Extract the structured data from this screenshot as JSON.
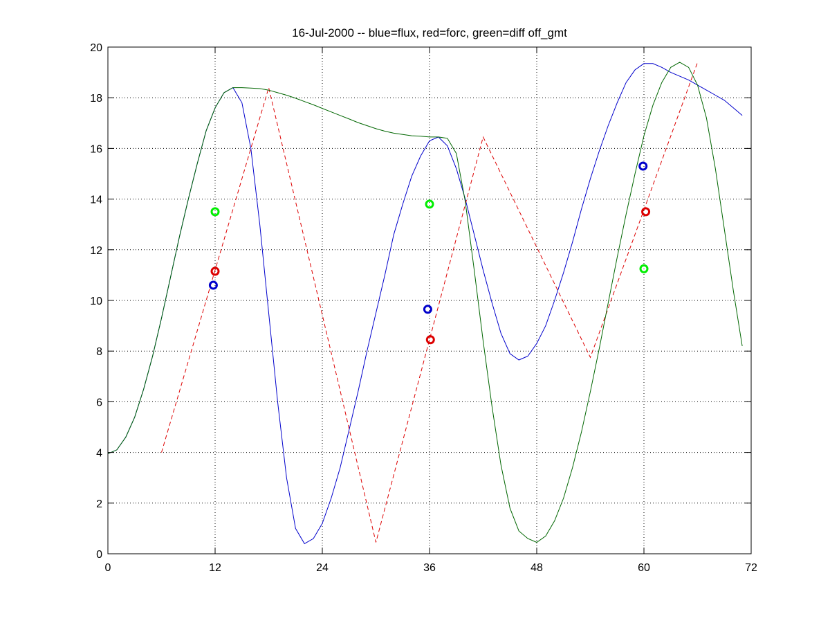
{
  "chart_data": {
    "type": "line",
    "title": "16-Jul-2000 -- blue=flux, red=forc, green=diff off_gmt",
    "xlabel": "",
    "ylabel": "",
    "xlim": [
      0,
      72
    ],
    "ylim": [
      0,
      20
    ],
    "xticks": [
      0,
      12,
      24,
      36,
      48,
      60,
      72
    ],
    "yticks": [
      0,
      2,
      4,
      6,
      8,
      10,
      12,
      14,
      16,
      18,
      20
    ],
    "grid": true,
    "colors": {
      "blue": "#0000cc",
      "red": "#dd0000",
      "green": "#006600",
      "green_marker": "#00ee00",
      "grid": "#000000"
    },
    "series": [
      {
        "color": "blue",
        "style": "solid",
        "x": [
          0,
          1,
          2,
          3,
          4,
          5,
          6,
          7,
          8,
          9,
          10,
          11,
          12,
          13,
          14,
          15,
          16,
          17,
          18,
          19,
          20,
          21,
          22,
          23,
          24,
          25,
          26,
          27,
          28,
          29,
          30,
          31,
          32,
          33,
          34,
          35,
          36,
          37,
          38,
          39,
          40,
          41,
          42,
          43,
          44,
          45,
          46,
          47,
          48,
          49,
          50,
          51,
          52,
          53,
          54,
          55,
          56,
          57,
          58,
          59,
          60,
          61,
          62,
          63,
          64,
          65,
          66,
          67,
          68,
          69,
          70,
          71
        ],
        "y": [
          3.95,
          4.1,
          4.6,
          5.4,
          6.5,
          7.8,
          9.3,
          10.9,
          12.5,
          14.0,
          15.4,
          16.7,
          17.6,
          18.2,
          18.4,
          17.8,
          16.0,
          13.0,
          9.5,
          6.0,
          3.0,
          1.0,
          0.4,
          0.6,
          1.2,
          2.2,
          3.4,
          4.9,
          6.4,
          8.0,
          9.5,
          11.0,
          12.6,
          13.8,
          14.9,
          15.7,
          16.3,
          16.45,
          16.1,
          15.2,
          14.0,
          12.6,
          11.2,
          9.9,
          8.7,
          7.9,
          7.65,
          7.8,
          8.3,
          9.0,
          10.0,
          11.1,
          12.3,
          13.6,
          14.8,
          15.9,
          16.9,
          17.8,
          18.6,
          19.1,
          19.35,
          19.35,
          19.2,
          19.0,
          18.85,
          18.7,
          18.5,
          18.3,
          18.1,
          17.9,
          17.6,
          17.3
        ]
      },
      {
        "color": "red",
        "style": "dashed",
        "x": [
          6,
          18,
          30,
          42,
          54,
          66
        ],
        "y": [
          4.0,
          18.4,
          0.45,
          16.45,
          7.75,
          19.4
        ]
      },
      {
        "color": "green",
        "style": "solid",
        "x": [
          0,
          1,
          2,
          3,
          4,
          5,
          6,
          7,
          8,
          9,
          10,
          11,
          12,
          13,
          14,
          15,
          16,
          17,
          18,
          19,
          20,
          21,
          22,
          23,
          24,
          25,
          26,
          27,
          28,
          29,
          30,
          31,
          32,
          33,
          34,
          35,
          36,
          37,
          38,
          39,
          40,
          41,
          42,
          43,
          44,
          45,
          46,
          47,
          48,
          49,
          50,
          51,
          52,
          53,
          54,
          55,
          56,
          57,
          58,
          59,
          60,
          61,
          62,
          63,
          64,
          65,
          66,
          67,
          68,
          69,
          70,
          71
        ],
        "y": [
          3.95,
          4.1,
          4.6,
          5.4,
          6.5,
          7.8,
          9.3,
          10.9,
          12.5,
          14.0,
          15.4,
          16.7,
          17.6,
          18.2,
          18.4,
          18.4,
          18.38,
          18.36,
          18.3,
          18.2,
          18.1,
          17.98,
          17.85,
          17.72,
          17.58,
          17.44,
          17.3,
          17.16,
          17.02,
          16.9,
          16.78,
          16.68,
          16.6,
          16.55,
          16.5,
          16.48,
          16.45,
          16.45,
          16.4,
          15.8,
          13.9,
          11.2,
          8.4,
          5.8,
          3.5,
          1.8,
          0.9,
          0.6,
          0.45,
          0.7,
          1.3,
          2.2,
          3.4,
          4.8,
          6.4,
          8.1,
          9.9,
          11.7,
          13.4,
          15.0,
          16.5,
          17.7,
          18.6,
          19.2,
          19.4,
          19.2,
          18.5,
          17.2,
          15.2,
          12.8,
          10.4,
          8.2
        ]
      }
    ],
    "markers": [
      {
        "color": "green",
        "x": 12.0,
        "y": 13.5
      },
      {
        "color": "red",
        "x": 12.0,
        "y": 11.15
      },
      {
        "color": "blue",
        "x": 11.8,
        "y": 10.6
      },
      {
        "color": "green",
        "x": 36.0,
        "y": 13.8
      },
      {
        "color": "blue",
        "x": 35.8,
        "y": 9.65
      },
      {
        "color": "red",
        "x": 36.1,
        "y": 8.45
      },
      {
        "color": "blue",
        "x": 59.9,
        "y": 15.3
      },
      {
        "color": "red",
        "x": 60.2,
        "y": 13.5
      },
      {
        "color": "green",
        "x": 60.0,
        "y": 11.25
      }
    ]
  }
}
